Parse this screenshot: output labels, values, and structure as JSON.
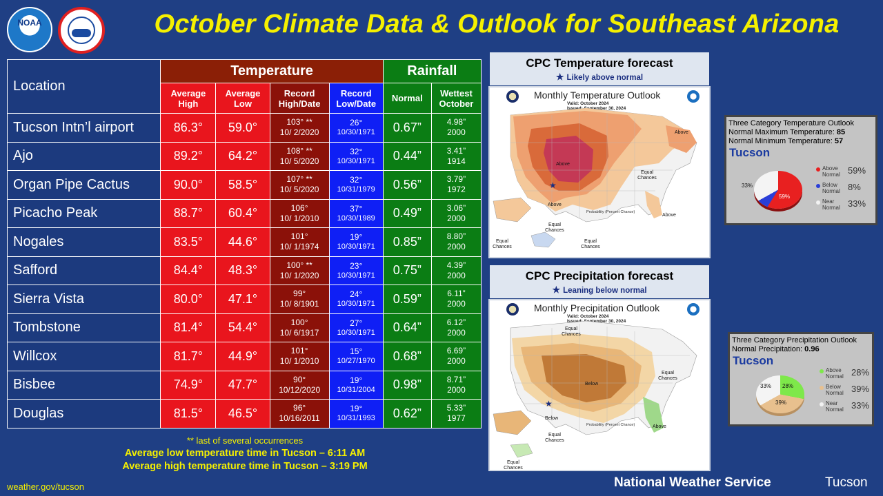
{
  "header": {
    "title": "October Climate Data & Outlook for Southeast Arizona",
    "noaa_logo_text": "NOAA"
  },
  "table": {
    "location_header": "Location",
    "temperature_header": "Temperature",
    "rainfall_header": "Rainfall",
    "col_avg_high": "Average High",
    "col_avg_low": "Average Low",
    "col_rec_high": "Record High/Date",
    "col_rec_low": "Record Low/Date",
    "col_normal": "Normal",
    "col_wettest": "Wettest October",
    "rows": [
      {
        "loc": "Tucson Intn’l airport",
        "hi": "86.3°",
        "lo": "59.0°",
        "rh": "103° **",
        "rhd": "10/ 2/2020",
        "rl": "26°",
        "rld": "10/30/1971",
        "norm": "0.67”",
        "wv": "4.98”",
        "wy": "2000"
      },
      {
        "loc": "Ajo",
        "hi": "89.2°",
        "lo": "64.2°",
        "rh": "108° **",
        "rhd": "10/ 5/2020",
        "rl": "32°",
        "rld": "10/30/1971",
        "norm": "0.44”",
        "wv": "3.41”",
        "wy": "1914"
      },
      {
        "loc": "Organ Pipe Cactus",
        "hi": "90.0°",
        "lo": "58.5°",
        "rh": "107° **",
        "rhd": "10/ 5/2020",
        "rl": "32°",
        "rld": "10/31/1979",
        "norm": "0.56”",
        "wv": "3.79”",
        "wy": "1972"
      },
      {
        "loc": "Picacho Peak",
        "hi": "88.7°",
        "lo": "60.4°",
        "rh": "106°",
        "rhd": "10/ 1/2010",
        "rl": "37°",
        "rld": "10/30/1989",
        "norm": "0.49”",
        "wv": "3.06”",
        "wy": "2000"
      },
      {
        "loc": "Nogales",
        "hi": "83.5°",
        "lo": "44.6°",
        "rh": "101°",
        "rhd": "10/ 1/1974",
        "rl": "19°",
        "rld": "10/30/1971",
        "norm": "0.85”",
        "wv": "8.80”",
        "wy": "2000"
      },
      {
        "loc": "Safford",
        "hi": "84.4°",
        "lo": "48.3°",
        "rh": "100° **",
        "rhd": "10/ 1/2020",
        "rl": "23°",
        "rld": "10/30/1971",
        "norm": "0.75”",
        "wv": "4.39”",
        "wy": "2000"
      },
      {
        "loc": "Sierra Vista",
        "hi": "80.0°",
        "lo": "47.1°",
        "rh": "99°",
        "rhd": "10/ 8/1901",
        "rl": "24°",
        "rld": "10/30/1971",
        "norm": "0.59”",
        "wv": "6.11”",
        "wy": "2000"
      },
      {
        "loc": "Tombstone",
        "hi": "81.4°",
        "lo": "54.4°",
        "rh": "100°",
        "rhd": "10/ 6/1917",
        "rl": "27°",
        "rld": "10/30/1971",
        "norm": "0.64”",
        "wv": "6.12”",
        "wy": "2000"
      },
      {
        "loc": "Willcox",
        "hi": "81.7°",
        "lo": "44.9°",
        "rh": "101°",
        "rhd": "10/ 1/2010",
        "rl": "15°",
        "rld": "10/27/1970",
        "norm": "0.68”",
        "wv": "6.69”",
        "wy": "2000"
      },
      {
        "loc": "Bisbee",
        "hi": "74.9°",
        "lo": "47.7°",
        "rh": "90°",
        "rhd": "10/12/2020",
        "rl": "19°",
        "rld": "10/31/2004",
        "norm": "0.98”",
        "wv": "8.71”",
        "wy": "2000"
      },
      {
        "loc": "Douglas",
        "hi": "81.5°",
        "lo": "46.5°",
        "rh": "96°",
        "rhd": "10/16/2011",
        "rl": "19°",
        "rld": "10/31/1993",
        "norm": "0.62”",
        "wv": "5.33”",
        "wy": "1977"
      }
    ]
  },
  "footer": {
    "footnote": "** last of several occurrences",
    "low_time": "Average low temperature time in Tucson – 6:11 AM",
    "high_time": "Average high temperature time in Tucson – 3:19 PM",
    "url": "weather.gov/tucson",
    "org": "National Weather Service",
    "office": "Tucson"
  },
  "cpc_temp": {
    "title": "CPC Temperature forecast",
    "subtitle": "Likely above normal",
    "map_title": "Monthly Temperature Outlook",
    "valid": "Valid:  October 2024",
    "issued": "Issued:  September 30, 2024",
    "labels": {
      "above_center": "Above",
      "above_ne": "Above",
      "above_fl": "Above",
      "above_ak": "Above",
      "equal": "Equal Chances",
      "equal_ak": "Equal Chances",
      "equal_hi": "Equal Chances",
      "equal_w": "Equal Chances"
    },
    "legend_title": "Probability (Percent Chance)"
  },
  "cpc_precip": {
    "title": "CPC Precipitation forecast",
    "subtitle": "Leaning below normal",
    "map_title": "Monthly Precipitation Outlook",
    "valid": "Valid:  October 2024",
    "issued": "Issued:  September 30, 2024",
    "labels": {
      "below": "Below",
      "below_ak": "Below",
      "equal_n": "Equal Chances",
      "equal_e": "Equal Chances",
      "equal_w": "Equal Chances",
      "equal_ak": "Equal Chances",
      "above": "Above"
    },
    "legend_title": "Probability (Percent Chance)"
  },
  "temp_panel": {
    "heading": "Three Category Temperature Outlook",
    "max_label": "Normal Maximum Temperature:",
    "max_value": "85",
    "min_label": "Normal Minimum Temperature:",
    "min_value": "57",
    "city": "Tucson",
    "legend": [
      {
        "label": "Above Normal",
        "pct": "59%",
        "color": "#e82020"
      },
      {
        "label": "Below Normal",
        "pct": "8%",
        "color": "#2a3ed8"
      },
      {
        "label": "Near Normal",
        "pct": "33%",
        "color": "#f2f2f2"
      }
    ],
    "pie_labels": {
      "above": "59%",
      "near": "33%"
    }
  },
  "precip_panel": {
    "heading": "Three Category Precipitation Outlook",
    "normal_label": "Normal Precipitation:",
    "normal_value": "0.96",
    "city": "Tucson",
    "legend": [
      {
        "label": "Above Normal",
        "pct": "28%",
        "color": "#7ee84a"
      },
      {
        "label": "Below Normal",
        "pct": "39%",
        "color": "#e8c08e"
      },
      {
        "label": "Near Normal",
        "pct": "33%",
        "color": "#f2f2f2"
      }
    ],
    "pie_labels": {
      "above": "28%",
      "below": "39%",
      "near": "33%"
    }
  }
}
